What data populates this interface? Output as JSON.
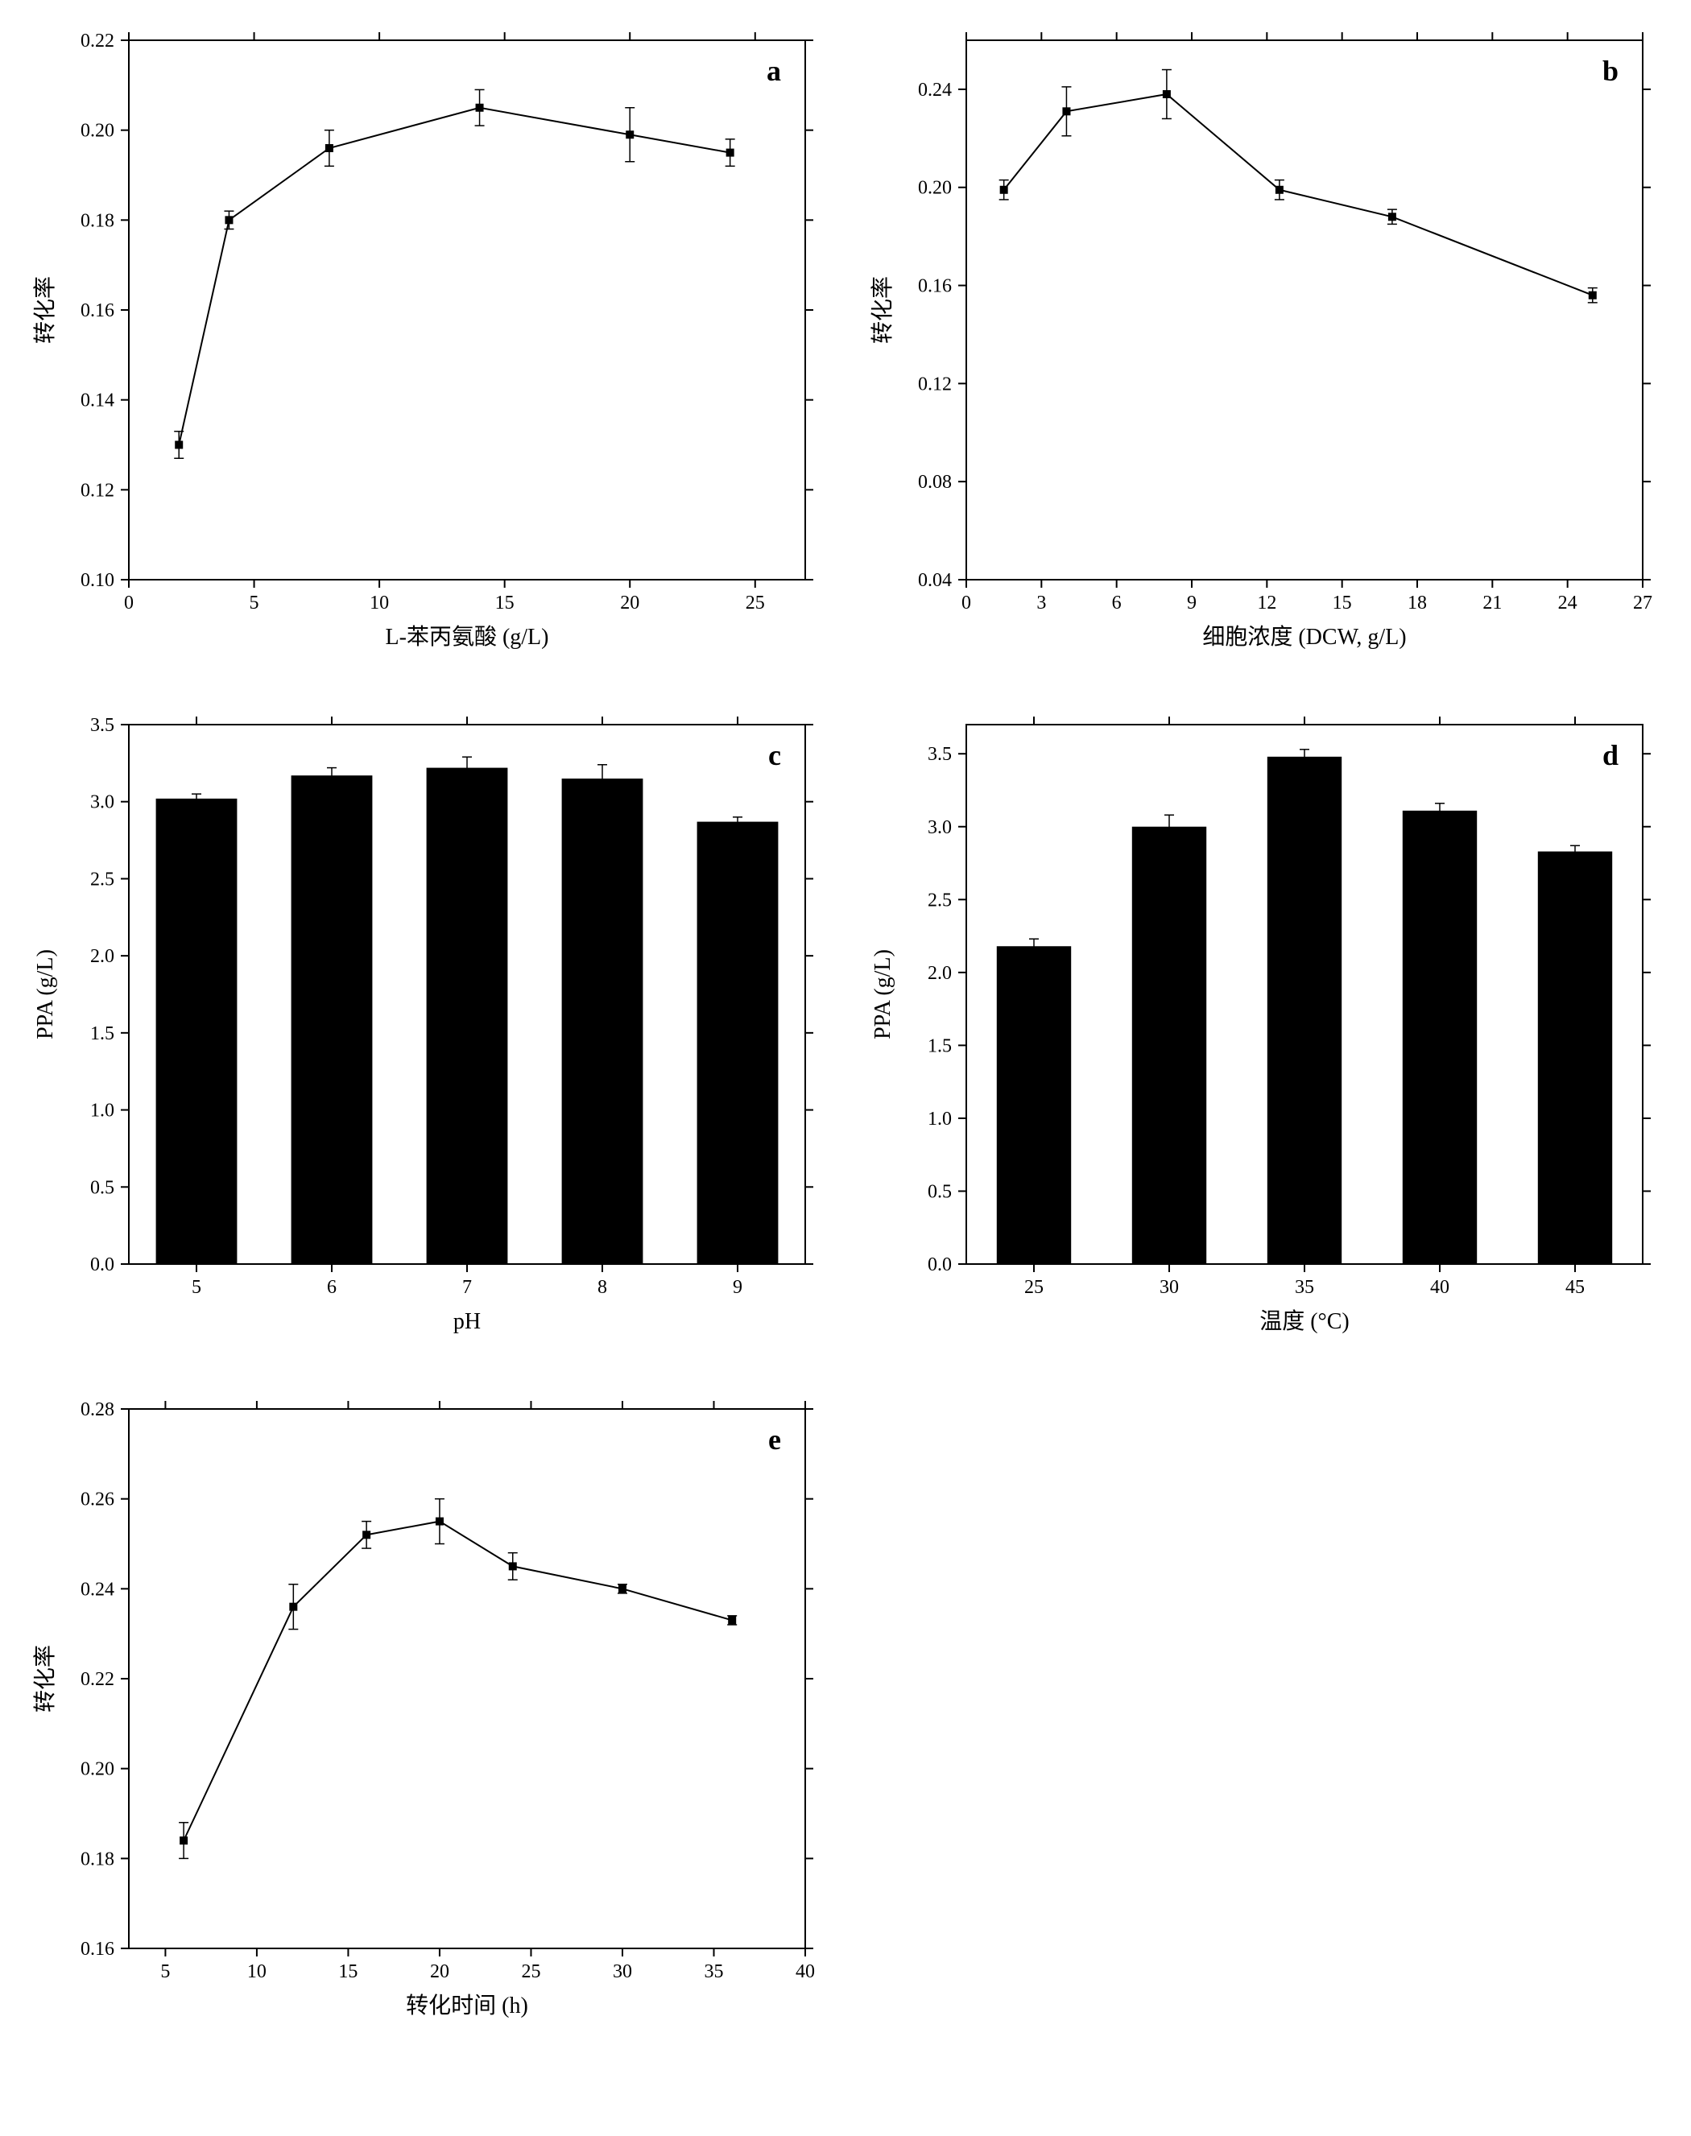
{
  "global": {
    "background_color": "#ffffff",
    "axis_color": "#000000",
    "text_color": "#000000",
    "marker_fill": "#000000",
    "bar_fill": "#000000",
    "line_color": "#000000",
    "font_family": "Times New Roman",
    "label_fontsize": 28,
    "tick_fontsize": 24,
    "panel_label_fontsize": 36,
    "axis_width": 2,
    "line_width": 2,
    "marker_size": 10,
    "errorbar_cap_width": 12
  },
  "chart_a": {
    "type": "scatter-line",
    "panel_label": "a",
    "xlabel": "L-苯丙氨酸 (g/L)",
    "ylabel": "转化率",
    "xlim": [
      0,
      27
    ],
    "ylim": [
      0.1,
      0.22
    ],
    "xticks": [
      0,
      5,
      10,
      15,
      20,
      25
    ],
    "yticks": [
      0.1,
      0.12,
      0.14,
      0.16,
      0.18,
      0.2,
      0.22
    ],
    "x": [
      2,
      4,
      8,
      14,
      20,
      24
    ],
    "y": [
      0.13,
      0.18,
      0.196,
      0.205,
      0.199,
      0.195
    ],
    "yerr": [
      0.003,
      0.002,
      0.004,
      0.004,
      0.006,
      0.003
    ]
  },
  "chart_b": {
    "type": "scatter-line",
    "panel_label": "b",
    "xlabel": "细胞浓度 (DCW, g/L)",
    "ylabel": "转化率",
    "xlim": [
      0,
      27
    ],
    "ylim": [
      0.04,
      0.26
    ],
    "xticks": [
      0,
      3,
      6,
      9,
      12,
      15,
      18,
      21,
      24,
      27
    ],
    "yticks": [
      0.04,
      0.08,
      0.12,
      0.16,
      0.2,
      0.24
    ],
    "x": [
      1.5,
      4,
      8,
      12.5,
      17,
      25
    ],
    "y": [
      0.199,
      0.231,
      0.238,
      0.199,
      0.188,
      0.156
    ],
    "yerr": [
      0.004,
      0.01,
      0.01,
      0.004,
      0.003,
      0.003
    ]
  },
  "chart_c": {
    "type": "bar",
    "panel_label": "c",
    "xlabel": "pH",
    "ylabel": "PPA (g/L)",
    "ylim": [
      0.0,
      3.5
    ],
    "yticks": [
      0.0,
      0.5,
      1.0,
      1.5,
      2.0,
      2.5,
      3.0,
      3.5
    ],
    "categories": [
      "5",
      "6",
      "7",
      "8",
      "9"
    ],
    "values": [
      3.02,
      3.17,
      3.22,
      3.15,
      2.87
    ],
    "yerr": [
      0.03,
      0.05,
      0.07,
      0.09,
      0.03
    ],
    "bar_width": 0.6
  },
  "chart_d": {
    "type": "bar",
    "panel_label": "d",
    "xlabel": "温度 (°C)",
    "xlabel_raw": "温度 (ᵒC)",
    "ylabel": "PPA (g/L)",
    "ylim": [
      0.0,
      3.7
    ],
    "yticks": [
      0.0,
      0.5,
      1.0,
      1.5,
      2.0,
      2.5,
      3.0,
      3.5
    ],
    "categories": [
      "25",
      "30",
      "35",
      "40",
      "45"
    ],
    "values": [
      2.18,
      3.0,
      3.48,
      3.11,
      2.83
    ],
    "yerr": [
      0.05,
      0.08,
      0.05,
      0.05,
      0.04
    ],
    "bar_width": 0.55
  },
  "chart_e": {
    "type": "scatter-line",
    "panel_label": "e",
    "xlabel": "转化时间  (h)",
    "ylabel": "转化率",
    "xlim": [
      3,
      40
    ],
    "ylim": [
      0.16,
      0.28
    ],
    "xticks": [
      5,
      10,
      15,
      20,
      25,
      30,
      35,
      40
    ],
    "yticks": [
      0.16,
      0.18,
      0.2,
      0.22,
      0.24,
      0.26,
      0.28
    ],
    "x": [
      6,
      12,
      16,
      20,
      24,
      30,
      36
    ],
    "y": [
      0.184,
      0.236,
      0.252,
      0.255,
      0.245,
      0.24,
      0.233
    ],
    "yerr": [
      0.004,
      0.005,
      0.003,
      0.005,
      0.003,
      0.001,
      0.001
    ]
  }
}
